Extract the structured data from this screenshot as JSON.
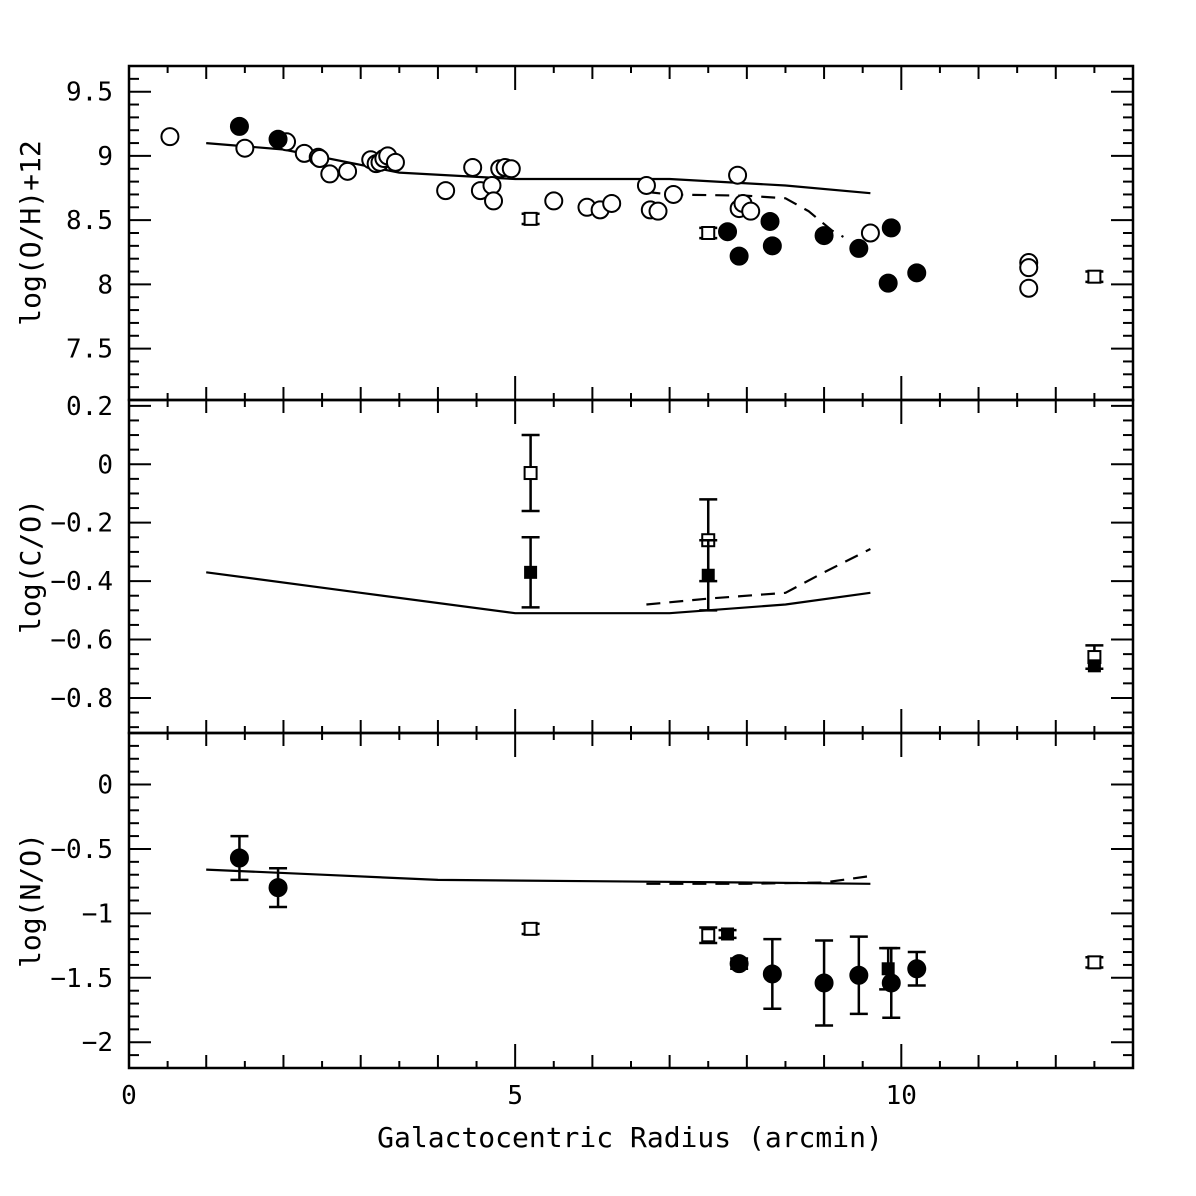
{
  "chart_data": {
    "type": "scatter",
    "xlabel": "Galactocentric Radius (arcmin)",
    "xlim": [
      0,
      13
    ],
    "xticks": [
      0,
      5,
      10
    ],
    "xtick_labels": [
      "0",
      "5",
      "10"
    ],
    "panels": [
      {
        "id": "oh",
        "ylabel": "log(O/H)+12",
        "ylim": [
          7.1,
          9.7
        ],
        "yticks": [
          7.5,
          8,
          8.5,
          9,
          9.5
        ],
        "ytick_labels": [
          "7.5",
          "8",
          "8.5",
          "9",
          "9.5"
        ],
        "series": [
          {
            "marker": "open-circle",
            "points": [
              [
                0.53,
                9.15
              ],
              [
                1.5,
                9.06
              ],
              [
                2.04,
                9.11
              ],
              [
                2.27,
                9.02
              ],
              [
                2.45,
                8.99
              ],
              [
                2.47,
                8.98
              ],
              [
                2.6,
                8.86
              ],
              [
                2.83,
                8.88
              ],
              [
                3.13,
                8.97
              ],
              [
                3.2,
                8.94
              ],
              [
                3.25,
                8.95
              ],
              [
                3.3,
                8.98
              ],
              [
                3.35,
                9.0
              ],
              [
                3.45,
                8.95
              ],
              [
                4.1,
                8.73
              ],
              [
                4.45,
                8.91
              ],
              [
                4.55,
                8.73
              ],
              [
                4.7,
                8.77
              ],
              [
                4.72,
                8.65
              ],
              [
                4.8,
                8.9
              ],
              [
                4.87,
                8.91
              ],
              [
                4.95,
                8.9
              ],
              [
                5.5,
                8.65
              ],
              [
                5.93,
                8.6
              ],
              [
                6.1,
                8.58
              ],
              [
                6.25,
                8.63
              ],
              [
                6.7,
                8.77
              ],
              [
                6.75,
                8.58
              ],
              [
                6.85,
                8.57
              ],
              [
                7.05,
                8.7
              ],
              [
                7.88,
                8.85
              ],
              [
                7.9,
                8.59
              ],
              [
                7.95,
                8.63
              ],
              [
                8.05,
                8.57
              ],
              [
                9.6,
                8.4
              ],
              [
                11.65,
                8.17
              ],
              [
                11.65,
                8.13
              ],
              [
                11.65,
                7.97
              ]
            ]
          },
          {
            "marker": "filled-circle",
            "points": [
              [
                1.43,
                9.23
              ],
              [
                1.93,
                9.13
              ],
              [
                7.75,
                8.41
              ],
              [
                7.9,
                8.22
              ],
              [
                8.3,
                8.49
              ],
              [
                8.33,
                8.3
              ],
              [
                9.0,
                8.38
              ],
              [
                9.45,
                8.28
              ],
              [
                9.83,
                8.01
              ],
              [
                9.87,
                8.44
              ],
              [
                10.2,
                8.09
              ]
            ]
          },
          {
            "marker": "open-square",
            "points": [
              [
                5.2,
                8.51
              ],
              [
                7.5,
                8.4
              ],
              [
                12.5,
                8.06
              ]
            ],
            "yerr": [
              0.04,
              0.04,
              0.04
            ]
          }
        ],
        "models": [
          {
            "style": "solid",
            "points": [
              [
                1.0,
                9.1
              ],
              [
                2.0,
                9.05
              ],
              [
                3.5,
                8.87
              ],
              [
                5.0,
                8.82
              ],
              [
                7.0,
                8.82
              ],
              [
                8.5,
                8.77
              ],
              [
                9.6,
                8.71
              ]
            ]
          },
          {
            "style": "dashed",
            "points": [
              [
                6.7,
                8.72
              ],
              [
                7.0,
                8.7
              ],
              [
                8.0,
                8.69
              ],
              [
                8.5,
                8.67
              ],
              [
                8.8,
                8.57
              ],
              [
                9.1,
                8.42
              ],
              [
                9.25,
                8.37
              ]
            ]
          }
        ]
      },
      {
        "id": "co",
        "ylabel": "log(C/O)",
        "ylim": [
          -0.92,
          0.22
        ],
        "yticks": [
          -0.8,
          -0.6,
          -0.4,
          -0.2,
          0,
          0.2
        ],
        "ytick_labels": [
          "−0.8",
          "−0.6",
          "−0.4",
          "−0.2",
          "0",
          "0.2"
        ],
        "series": [
          {
            "marker": "open-square",
            "points": [
              [
                5.2,
                -0.03
              ],
              [
                7.5,
                -0.26
              ],
              [
                12.5,
                -0.66
              ]
            ],
            "yerr": [
              0.13,
              0.14,
              0.04
            ]
          },
          {
            "marker": "filled-square",
            "points": [
              [
                5.2,
                -0.37
              ],
              [
                7.5,
                -0.38
              ],
              [
                12.5,
                -0.69
              ]
            ],
            "yerr": [
              0.12,
              0.12,
              0.0
            ]
          }
        ],
        "models": [
          {
            "style": "solid",
            "points": [
              [
                1.0,
                -0.37
              ],
              [
                3.0,
                -0.44
              ],
              [
                5.0,
                -0.51
              ],
              [
                7.0,
                -0.51
              ],
              [
                8.5,
                -0.48
              ],
              [
                9.6,
                -0.44
              ]
            ]
          },
          {
            "style": "dashed",
            "points": [
              [
                6.7,
                -0.48
              ],
              [
                7.5,
                -0.46
              ],
              [
                8.5,
                -0.44
              ],
              [
                9.0,
                -0.37
              ],
              [
                9.6,
                -0.29
              ]
            ]
          }
        ]
      },
      {
        "id": "no",
        "ylabel": "log(N/O)",
        "ylim": [
          -2.2,
          0.4
        ],
        "yticks": [
          -2,
          -1.5,
          -1,
          -0.5,
          0
        ],
        "ytick_labels": [
          "−2",
          "−1.5",
          "−1",
          "−0.5",
          "0"
        ],
        "series": [
          {
            "marker": "filled-circle",
            "points": [
              [
                1.43,
                -0.57
              ],
              [
                1.93,
                -0.8
              ],
              [
                7.9,
                -1.39
              ],
              [
                8.33,
                -1.47
              ],
              [
                9.0,
                -1.54
              ],
              [
                9.45,
                -1.48
              ],
              [
                9.87,
                -1.54
              ],
              [
                10.2,
                -1.43
              ]
            ],
            "yerr": [
              0.17,
              0.15,
              0.04,
              0.27,
              0.33,
              0.3,
              0.27,
              0.13
            ]
          },
          {
            "marker": "open-square",
            "points": [
              [
                5.2,
                -1.12
              ],
              [
                7.5,
                -1.17
              ],
              [
                12.5,
                -1.38
              ]
            ],
            "yerr": [
              0.04,
              0.06,
              0.04
            ]
          },
          {
            "marker": "filled-square",
            "points": [
              [
                7.75,
                -1.16
              ],
              [
                9.83,
                -1.43
              ]
            ],
            "yerr": [
              0.03,
              0.16
            ]
          }
        ],
        "models": [
          {
            "style": "solid",
            "points": [
              [
                1.0,
                -0.66
              ],
              [
                2.5,
                -0.7
              ],
              [
                4.0,
                -0.74
              ],
              [
                6.0,
                -0.75
              ],
              [
                8.0,
                -0.76
              ],
              [
                9.6,
                -0.77
              ]
            ]
          },
          {
            "style": "dashed",
            "points": [
              [
                6.7,
                -0.77
              ],
              [
                8.0,
                -0.77
              ],
              [
                9.0,
                -0.76
              ],
              [
                9.6,
                -0.71
              ]
            ]
          }
        ]
      }
    ]
  }
}
